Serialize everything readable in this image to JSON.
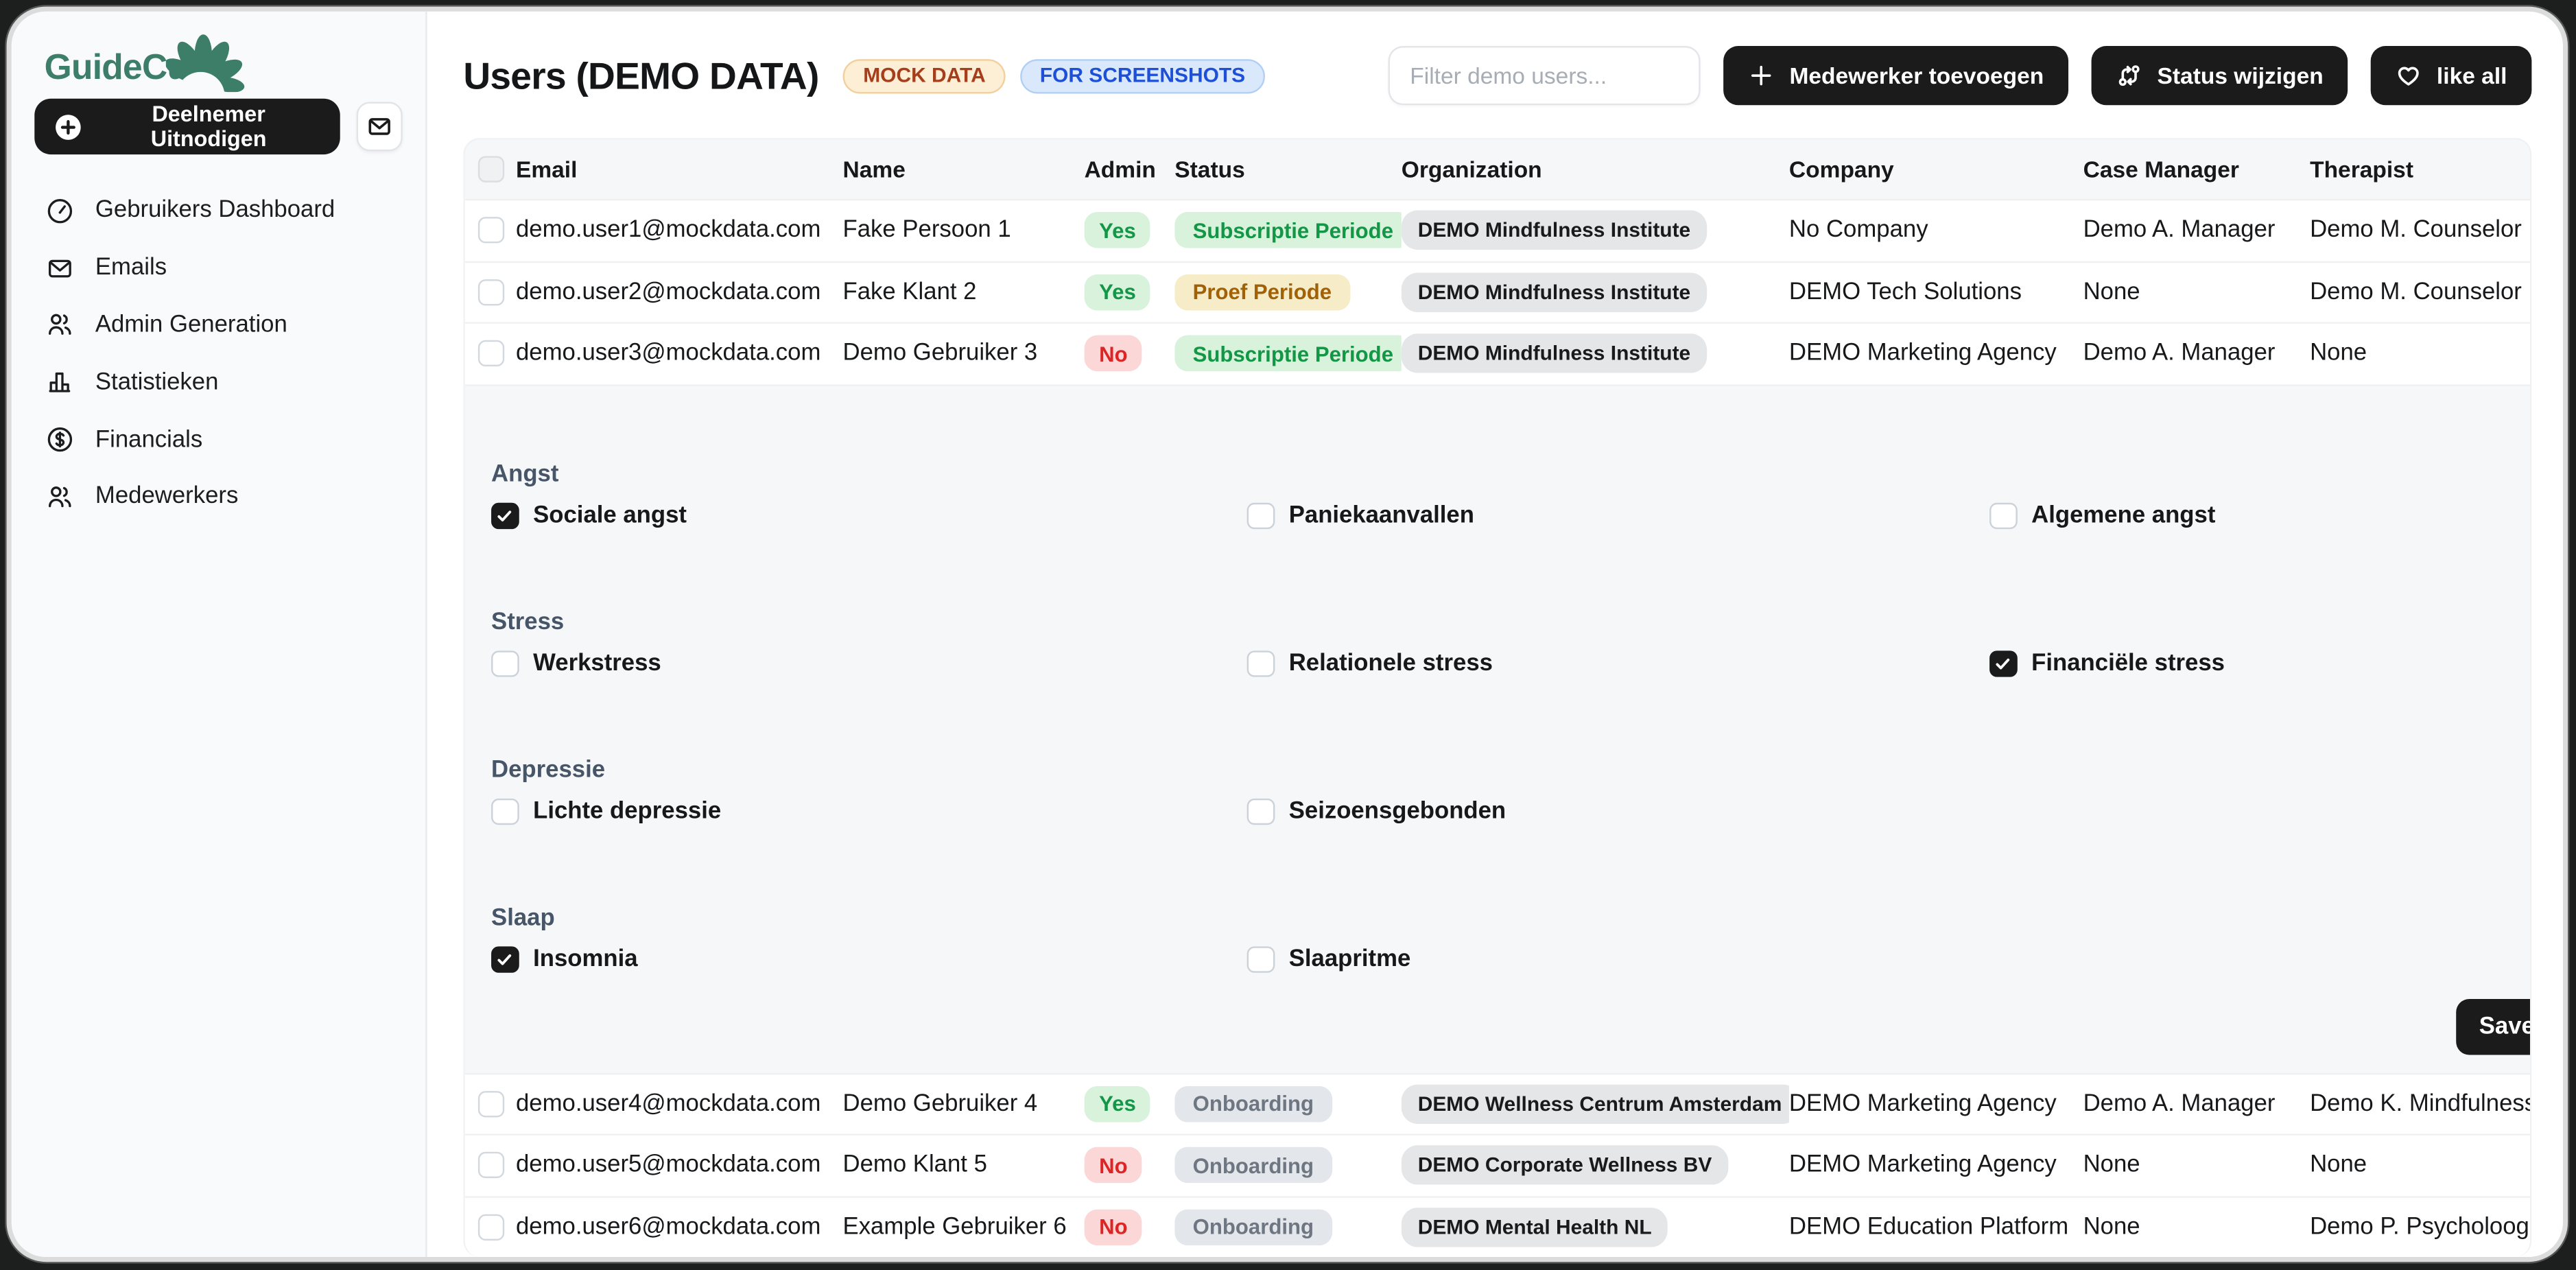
{
  "sidebar": {
    "logo_text": "GuideCue",
    "invite_button_label": "Deelnemer Uitnodigen",
    "items": [
      {
        "label": "Gebruikers Dashboard",
        "icon": "gauge"
      },
      {
        "label": "Emails",
        "icon": "mail"
      },
      {
        "label": "Admin Generation",
        "icon": "users"
      },
      {
        "label": "Statistieken",
        "icon": "chart"
      },
      {
        "label": "Financials",
        "icon": "dollar"
      },
      {
        "label": "Medewerkers",
        "icon": "users"
      }
    ]
  },
  "header": {
    "title": "Users (DEMO DATA)",
    "badges": [
      {
        "label": "MOCK DATA"
      },
      {
        "label": "FOR SCREENSHOTS"
      }
    ],
    "filter_placeholder": "Filter demo users...",
    "buttons": [
      {
        "label": "Medewerker toevoegen",
        "icon": "plus"
      },
      {
        "label": "Status wijzigen",
        "icon": "compare"
      },
      {
        "label": "like all",
        "icon": "heart"
      }
    ]
  },
  "table": {
    "columns": [
      "Email",
      "Name",
      "Admin",
      "Status",
      "Organization",
      "Company",
      "Case Manager",
      "Therapist"
    ],
    "rows": [
      {
        "email": "demo.user1@mockdata.com",
        "name": "Fake Persoon 1",
        "admin": "Yes",
        "status": "Subscriptie Periode",
        "status_variant": "green",
        "organization": "DEMO Mindfulness Institute",
        "company": "No Company",
        "case_manager": "Demo A. Manager",
        "therapist": "Demo M. Counselor"
      },
      {
        "email": "demo.user2@mockdata.com",
        "name": "Fake Klant 2",
        "admin": "Yes",
        "status": "Proef Periode",
        "status_variant": "amber",
        "organization": "DEMO Mindfulness Institute",
        "company": "DEMO Tech Solutions",
        "case_manager": "None",
        "therapist": "Demo M. Counselor"
      },
      {
        "email": "demo.user3@mockdata.com",
        "name": "Demo Gebruiker 3",
        "admin": "No",
        "status": "Subscriptie Periode",
        "status_variant": "green",
        "organization": "DEMO Mindfulness Institute",
        "company": "DEMO Marketing Agency",
        "case_manager": "Demo A. Manager",
        "therapist": "None"
      },
      {
        "email": "demo.user4@mockdata.com",
        "name": "Demo Gebruiker 4",
        "admin": "Yes",
        "status": "Onboarding",
        "status_variant": "gray",
        "organization": "DEMO Wellness Centrum Amsterdam",
        "company": "DEMO Marketing Agency",
        "case_manager": "Demo A. Manager",
        "therapist": "Demo K. Mindfulness"
      },
      {
        "email": "demo.user5@mockdata.com",
        "name": "Demo Klant 5",
        "admin": "No",
        "status": "Onboarding",
        "status_variant": "gray",
        "organization": "DEMO Corporate Wellness BV",
        "company": "DEMO Marketing Agency",
        "case_manager": "None",
        "therapist": "None"
      },
      {
        "email": "demo.user6@mockdata.com",
        "name": "Example Gebruiker 6",
        "admin": "No",
        "status": "Onboarding",
        "status_variant": "gray",
        "organization": "DEMO Mental Health NL",
        "company": "DEMO Education Platform",
        "case_manager": "None",
        "therapist": "Demo P. Psycholoog"
      }
    ]
  },
  "panel": {
    "sections": [
      {
        "label": "Angst",
        "items": [
          {
            "label": "Sociale angst",
            "checked": true
          },
          {
            "label": "Paniekaanvallen",
            "checked": false
          },
          {
            "label": "Algemene angst",
            "checked": false
          }
        ]
      },
      {
        "label": "Stress",
        "items": [
          {
            "label": "Werkstress",
            "checked": false
          },
          {
            "label": "Relationele stress",
            "checked": false
          },
          {
            "label": "Financiële stress",
            "checked": true
          }
        ]
      },
      {
        "label": "Depressie",
        "items": [
          {
            "label": "Lichte depressie",
            "checked": false
          },
          {
            "label": "Seizoensgebonden",
            "checked": false
          }
        ]
      },
      {
        "label": "Slaap",
        "items": [
          {
            "label": "Insomnia",
            "checked": true
          },
          {
            "label": "Slaapritme",
            "checked": false
          }
        ]
      }
    ],
    "save_label": "Save"
  },
  "colors": {
    "brand_green": "#3c7e68",
    "button_black": "#1b1b1b",
    "badge_mock_bg": "#fdeed6",
    "badge_mock_text": "#a63e1b",
    "badge_screens_bg": "#d9e8fb",
    "badge_screens_text": "#1d4fd7",
    "pill_green_bg": "#d8f2dc",
    "pill_green_text": "#149647",
    "pill_red_bg": "#fbd7d7",
    "pill_red_text": "#dc2626",
    "pill_amber_bg": "#f7ecc8",
    "pill_amber_text": "#a16207",
    "pill_gray_bg": "#e3e6ea",
    "pill_gray_text": "#6e7681",
    "panel_bg": "#f6f7f8",
    "sidebar_bg": "#f9fafb"
  }
}
